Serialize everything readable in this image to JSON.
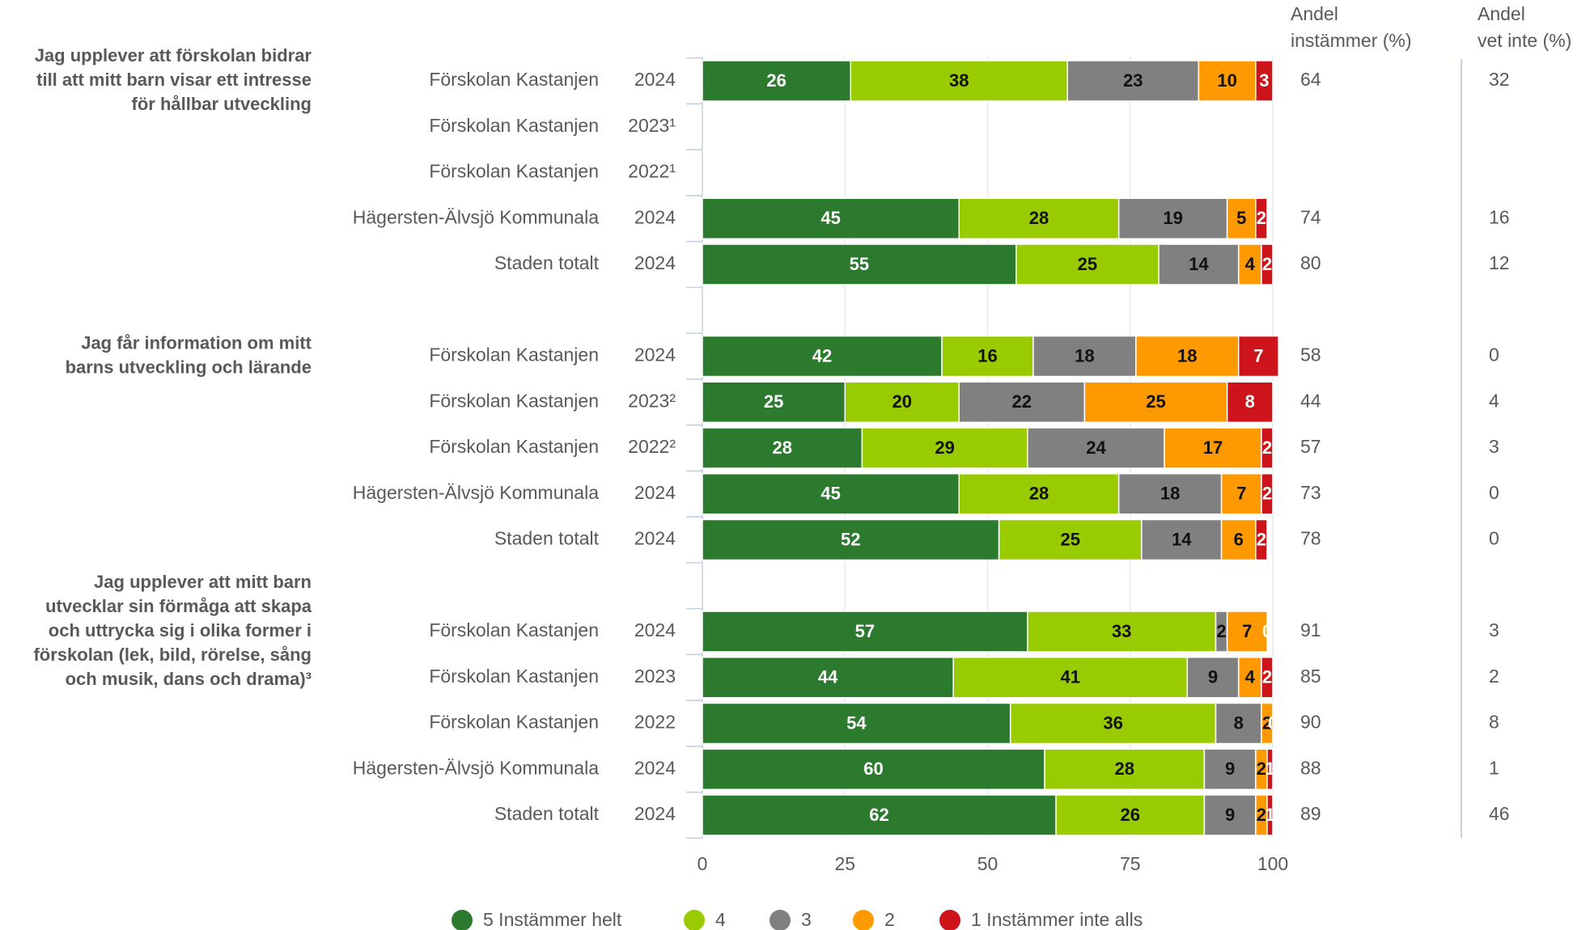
{
  "chart_data": {
    "type": "stacked_bar_h",
    "series": [
      {
        "name": "5 Instämmer helt",
        "color": "#2b7a2e",
        "text_color": "#ffffff"
      },
      {
        "name": "4",
        "color": "#99cc00",
        "text_color": "#111111"
      },
      {
        "name": "3",
        "color": "#808080",
        "text_color": "#111111"
      },
      {
        "name": "2",
        "color": "#ff9900",
        "text_color": "#111111"
      },
      {
        "name": "1 Instämmer inte alls",
        "color": "#cc141a",
        "text_color": "#ffffff"
      }
    ],
    "xlim": [
      0,
      100
    ],
    "xticks": [
      0,
      25,
      50,
      75,
      100
    ],
    "grid": true,
    "column_headers": [
      [
        "Andel",
        "instämmer (%)"
      ],
      [
        "Andel",
        "vet inte (%)"
      ]
    ],
    "groups": [
      {
        "question": [
          "Jag upplever att förskolan bidrar",
          "till att mitt barn visar ett intresse",
          "för hållbar utveckling"
        ],
        "rows": [
          {
            "name": "Förskolan Kastanjen",
            "year": "2024",
            "values": [
              26,
              38,
              23,
              10,
              3
            ],
            "agree": 64,
            "dont_know": 32
          },
          {
            "name": "Förskolan Kastanjen",
            "year": "2023¹"
          },
          {
            "name": "Förskolan Kastanjen",
            "year": "2022¹"
          },
          {
            "name": "Hägersten-Älvsjö Kommunala",
            "year": "2024",
            "values": [
              45,
              28,
              19,
              5,
              2
            ],
            "agree": 74,
            "dont_know": 16
          },
          {
            "name": "Staden totalt",
            "year": "2024",
            "values": [
              55,
              25,
              14,
              4,
              2
            ],
            "agree": 80,
            "dont_know": 12
          }
        ]
      },
      {
        "question": [
          "Jag får information om mitt",
          "barns utveckling och lärande"
        ],
        "rows": [
          {
            "name": "Förskolan Kastanjen",
            "year": "2024",
            "values": [
              42,
              16,
              18,
              18,
              7
            ],
            "agree": 58,
            "dont_know": 0
          },
          {
            "name": "Förskolan Kastanjen",
            "year": "2023²",
            "values": [
              25,
              20,
              22,
              25,
              8
            ],
            "agree": 44,
            "dont_know": 4
          },
          {
            "name": "Förskolan Kastanjen",
            "year": "2022²",
            "values": [
              28,
              29,
              24,
              17,
              2
            ],
            "agree": 57,
            "dont_know": 3
          },
          {
            "name": "Hägersten-Älvsjö Kommunala",
            "year": "2024",
            "values": [
              45,
              28,
              18,
              7,
              2
            ],
            "agree": 73,
            "dont_know": 0
          },
          {
            "name": "Staden totalt",
            "year": "2024",
            "values": [
              52,
              25,
              14,
              6,
              2
            ],
            "agree": 78,
            "dont_know": 0
          }
        ]
      },
      {
        "question": [
          "Jag upplever att mitt barn",
          "utvecklar sin förmåga att skapa",
          "och uttrycka sig i olika former i",
          "förskolan (lek, bild, rörelse, sång",
          "och musik, dans och drama)³"
        ],
        "rows": [
          {
            "name": "Förskolan Kastanjen",
            "year": "2024",
            "values": [
              57,
              33,
              2,
              7,
              0
            ],
            "agree": 91,
            "dont_know": 3
          },
          {
            "name": "Förskolan Kastanjen",
            "year": "2023",
            "values": [
              44,
              41,
              9,
              4,
              2
            ],
            "agree": 85,
            "dont_know": 2
          },
          {
            "name": "Förskolan Kastanjen",
            "year": "2022",
            "values": [
              54,
              36,
              8,
              2,
              0
            ],
            "agree": 90,
            "dont_know": 8
          },
          {
            "name": "Hägersten-Älvsjö Kommunala",
            "year": "2024",
            "values": [
              60,
              28,
              9,
              2,
              1
            ],
            "agree": 88,
            "dont_know": 1
          },
          {
            "name": "Staden totalt",
            "year": "2024",
            "values": [
              62,
              26,
              9,
              2,
              1
            ],
            "agree": 89,
            "dont_know": 46
          }
        ]
      }
    ]
  }
}
